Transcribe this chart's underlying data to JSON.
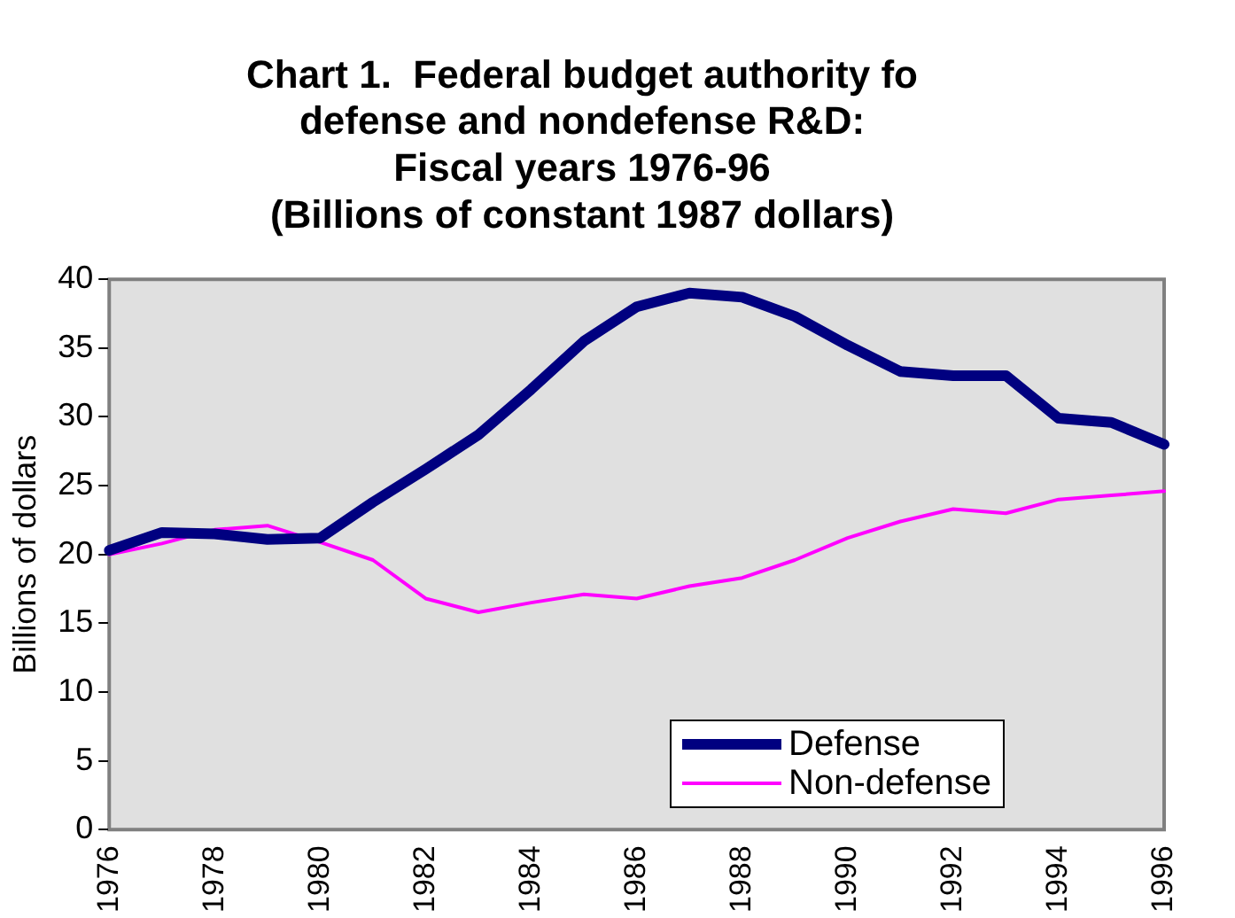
{
  "chart_data": {
    "type": "line",
    "title": "Chart 1.  Federal budget authority fo\ndefense and nondefense R&D:\nFiscal years 1976-96\n(Billions of constant 1987 dollars)",
    "ylabel": "Billions of dollars",
    "categories": [
      "1976",
      null,
      "1978",
      null,
      "1980",
      null,
      "1982",
      null,
      "1984",
      null,
      "1986",
      null,
      "1988",
      null,
      "1990",
      null,
      "1992",
      null,
      "1994",
      null,
      "1996"
    ],
    "series": [
      {
        "name": "Defense",
        "color": "#000080",
        "values": [
          20.3,
          21.6,
          21.5,
          21.1,
          21.2,
          23.8,
          26.2,
          28.7,
          32.0,
          35.5,
          38.0,
          39.0,
          38.7,
          37.3,
          35.2,
          33.3,
          33.0,
          33.0,
          29.9,
          29.6,
          28.0
        ]
      },
      {
        "name": "Non-defense",
        "color": "#ff00ff",
        "values": [
          20.0,
          20.8,
          21.8,
          22.1,
          20.9,
          19.6,
          16.8,
          15.8,
          16.5,
          17.1,
          16.8,
          17.7,
          18.3,
          19.6,
          21.2,
          22.4,
          23.3,
          23.0,
          24.0,
          24.3,
          24.6
        ]
      }
    ],
    "ylim": [
      0,
      40
    ],
    "yticks": [
      0,
      5,
      10,
      15,
      20,
      25,
      30,
      35,
      40
    ],
    "grid": false,
    "legend": "bottom right",
    "marker": "none",
    "line_style": "solid"
  }
}
